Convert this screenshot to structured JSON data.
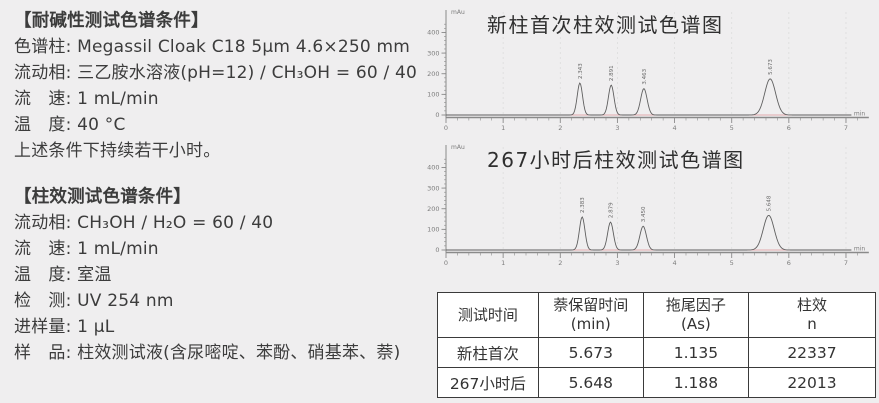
{
  "conditions": {
    "block1": {
      "title": "【耐碱性测试色谱条件】",
      "lines": [
        "色谱柱: Megassil Cloak C18 5μm 4.6×250 mm",
        "流动相: 三乙胺水溶液(pH=12) / CH₃OH = 60 / 40",
        "流　速: 1 mL/min",
        "温　度: 40 °C",
        "上述条件下持续若干小时。"
      ]
    },
    "block2": {
      "title": "【柱效测试色谱条件】",
      "lines": [
        "流动相: CH₃OH / H₂O = 60 / 40",
        "流　速: 1 mL/min",
        "温　度: 室温",
        "检　测: UV 254 nm",
        "进样量: 1 μL",
        "样　品: 柱效测试液(含尿嘧啶、苯酚、硝基苯、萘)"
      ]
    }
  },
  "chart_data": [
    {
      "type": "line",
      "title": "新柱首次柱效测试色谱图",
      "y_unit": "mAu",
      "x_unit": "min",
      "xlabel": "min",
      "ylabel": "mAu",
      "xlim": [
        0,
        7.4
      ],
      "ylim": [
        0,
        470
      ],
      "yticks": [
        0,
        100,
        200,
        300,
        400
      ],
      "xticks": [
        0,
        1,
        2,
        3,
        4,
        5,
        6,
        7
      ],
      "grid": "vertical-dashed",
      "legend": "none",
      "peaks": [
        {
          "rt": 2.343,
          "height": 155,
          "sigma": 0.046,
          "label": "2.343"
        },
        {
          "rt": 2.891,
          "height": 145,
          "sigma": 0.048,
          "label": "2.891"
        },
        {
          "rt": 3.463,
          "height": 128,
          "sigma": 0.056,
          "label": "3.463"
        },
        {
          "rt": 5.673,
          "height": 175,
          "sigma": 0.095,
          "label": "5.673"
        }
      ]
    },
    {
      "type": "line",
      "title": "267小时后柱效测试色谱图",
      "y_unit": "mAu",
      "x_unit": "min",
      "xlabel": "min",
      "ylabel": "mAu",
      "xlim": [
        0,
        7.4
      ],
      "ylim": [
        0,
        470
      ],
      "yticks": [
        0,
        100,
        200,
        300,
        400
      ],
      "xticks": [
        0,
        1,
        2,
        3,
        4,
        5,
        6,
        7
      ],
      "grid": "vertical-dashed",
      "legend": "none",
      "peaks": [
        {
          "rt": 2.383,
          "height": 160,
          "sigma": 0.048,
          "label": "2.383"
        },
        {
          "rt": 2.879,
          "height": 135,
          "sigma": 0.05,
          "label": "2.879"
        },
        {
          "rt": 3.45,
          "height": 115,
          "sigma": 0.057,
          "label": "3.450"
        },
        {
          "rt": 5.648,
          "height": 168,
          "sigma": 0.095,
          "label": "5.648"
        }
      ]
    }
  ],
  "table": {
    "headers": [
      {
        "line1": "测试时间",
        "line2": ""
      },
      {
        "line1": "萘保留时间",
        "line2": "(min)"
      },
      {
        "line1": "拖尾因子",
        "line2": "(As)"
      },
      {
        "line1": "柱效",
        "line2": "n"
      }
    ],
    "rows": [
      {
        "cells": [
          "新柱首次",
          "5.673",
          "1.135",
          "22337"
        ]
      },
      {
        "cells": [
          "267小时后",
          "5.648",
          "1.188",
          "22013"
        ]
      }
    ]
  },
  "colors": {
    "page_bg": "#efeeef",
    "text": "#3c3c3c",
    "axis": "#8a8a8a",
    "tick_label": "#7c7c7c",
    "curve": "#5f5f5f",
    "integration_baseline": "#e0a9ad",
    "gridline": "#dcdcdc",
    "table_border": "#3a3a3a",
    "table_bg": "#ffffff"
  }
}
